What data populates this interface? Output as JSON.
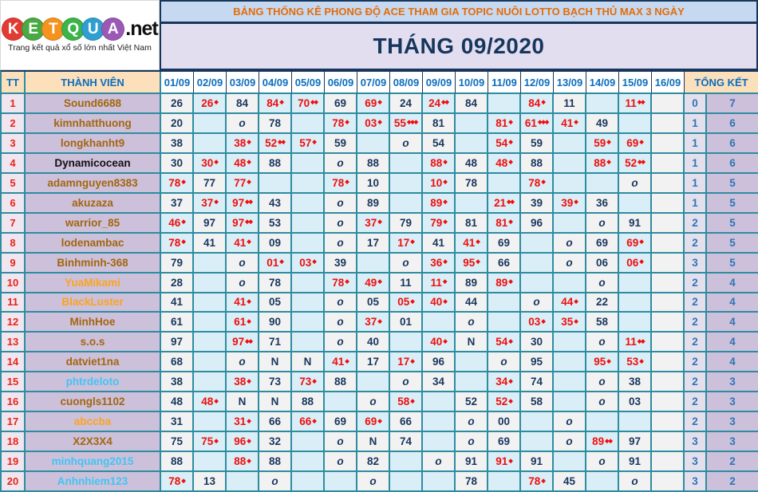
{
  "logo": {
    "letters": [
      {
        "ch": "K",
        "color": "#e23b33"
      },
      {
        "ch": "E",
        "color": "#49a942"
      },
      {
        "ch": "T",
        "color": "#f6921e"
      },
      {
        "ch": "Q",
        "color": "#3bb44a"
      },
      {
        "ch": "U",
        "color": "#2f9fd0"
      },
      {
        "ch": "A",
        "color": "#9b59b6"
      }
    ],
    "suffix": ".net",
    "tagline": "Trang kết quả xổ số lớn nhất Việt Nam"
  },
  "header": {
    "title": "BẢNG THỐNG KÊ PHONG ĐỘ ACE THAM GIA TOPIC NUÔI LOTTO BẠCH THỦ MAX 3 NGÀY",
    "month": "THÁNG 09/2020"
  },
  "columns": {
    "tt": "TT",
    "member": "THÀNH VIÊN",
    "dates": [
      "01/09",
      "02/09",
      "03/09",
      "04/09",
      "05/09",
      "06/09",
      "07/09",
      "08/09",
      "09/09",
      "10/09",
      "11/09",
      "12/09",
      "13/09",
      "14/09",
      "15/09",
      "16/09"
    ],
    "total": "TỔNG KẾT"
  },
  "colors": {
    "name_brown": "#a3660e",
    "name_black": "#111111",
    "name_orange": "#fca41d",
    "name_cyan": "#41c5f2",
    "value_navy": "#17375e",
    "value_red": "#f20d0d",
    "grid_teal": "#2e8ca0",
    "header_blue": "#0a6ebd",
    "title_orange": "#e36c0a",
    "band_lavender": "#e2deef",
    "band_blue": "#c6d9f1"
  },
  "rows": [
    {
      "tt": "1",
      "name": "Sound6688",
      "name_color": "brown",
      "cells": [
        "26",
        "26*",
        "84",
        "84*",
        "70**",
        "69",
        "69*",
        "24",
        "24**",
        "84",
        "",
        "84*",
        "11",
        "",
        "11**",
        ""
      ],
      "tk": [
        "0",
        "7"
      ]
    },
    {
      "tt": "2",
      "name": "kimnhatthuong",
      "name_color": "brown",
      "cells": [
        "20",
        "",
        "o",
        "78",
        "",
        "78*",
        "03*",
        "55***",
        "81",
        "",
        "81*",
        "61***",
        "41*",
        "49",
        "",
        ""
      ],
      "tk": [
        "1",
        "6"
      ]
    },
    {
      "tt": "3",
      "name": "longkhanht9",
      "name_color": "brown",
      "cells": [
        "38",
        "",
        "38*",
        "52**",
        "57*",
        "59",
        "",
        "o",
        "54",
        "",
        "54*",
        "59",
        "",
        "59*",
        "69*",
        ""
      ],
      "tk": [
        "1",
        "6"
      ]
    },
    {
      "tt": "4",
      "name": "Dynamicocean",
      "name_color": "black",
      "cells": [
        "30",
        "30*",
        "48*",
        "88",
        "",
        "o",
        "88",
        "",
        "88*",
        "48",
        "48*",
        "88",
        "",
        "88*",
        "52**",
        ""
      ],
      "tk": [
        "1",
        "6"
      ]
    },
    {
      "tt": "5",
      "name": "adamnguyen8383",
      "name_color": "brown",
      "cells": [
        "78*",
        "77",
        "77*",
        "",
        "",
        "78*",
        "10",
        "",
        "10*",
        "78",
        "",
        "78*",
        "",
        "",
        "o",
        ""
      ],
      "tk": [
        "1",
        "5"
      ]
    },
    {
      "tt": "6",
      "name": "akuzaza",
      "name_color": "brown",
      "cells": [
        "37",
        "37*",
        "97**",
        "43",
        "",
        "o",
        "89",
        "",
        "89*",
        "",
        "21**",
        "39",
        "39*",
        "36",
        "",
        ""
      ],
      "tk": [
        "1",
        "5"
      ]
    },
    {
      "tt": "7",
      "name": "warrior_85",
      "name_color": "brown",
      "cells": [
        "46*",
        "97",
        "97**",
        "53",
        "",
        "o",
        "37*",
        "79",
        "79*",
        "81",
        "81*",
        "96",
        "",
        "o",
        "91",
        ""
      ],
      "tk": [
        "2",
        "5"
      ]
    },
    {
      "tt": "8",
      "name": "lodenambac",
      "name_color": "brown",
      "cells": [
        "78*",
        "41",
        "41*",
        "09",
        "",
        "o",
        "17",
        "17*",
        "41",
        "41*",
        "69",
        "",
        "o",
        "69",
        "69*",
        ""
      ],
      "tk": [
        "2",
        "5"
      ]
    },
    {
      "tt": "9",
      "name": "Binhminh-368",
      "name_color": "brown",
      "cells": [
        "79",
        "",
        "o",
        "01*",
        "03*",
        "39",
        "",
        "o",
        "36*",
        "95*",
        "66",
        "",
        "o",
        "06",
        "06*",
        ""
      ],
      "tk": [
        "3",
        "5"
      ]
    },
    {
      "tt": "10",
      "name": "YuaMikami",
      "name_color": "orange",
      "cells": [
        "28",
        "",
        "o",
        "78",
        "",
        "78*",
        "49*",
        "11",
        "11*",
        "89",
        "89*",
        "",
        "",
        "o",
        "",
        ""
      ],
      "tk": [
        "2",
        "4"
      ]
    },
    {
      "tt": "11",
      "name": "BlackLuster",
      "name_color": "orange",
      "cells": [
        "41",
        "",
        "41*",
        "05",
        "",
        "o",
        "05",
        "05*",
        "40*",
        "44",
        "",
        "o",
        "44*",
        "22",
        "",
        ""
      ],
      "tk": [
        "2",
        "4"
      ]
    },
    {
      "tt": "12",
      "name": "MinhHoe",
      "name_color": "brown",
      "cells": [
        "61",
        "",
        "61*",
        "90",
        "",
        "o",
        "37*",
        "01",
        "",
        "o",
        "",
        "03*",
        "35*",
        "58",
        "",
        ""
      ],
      "tk": [
        "2",
        "4"
      ]
    },
    {
      "tt": "13",
      "name": "s.o.s",
      "name_color": "brown",
      "cells": [
        "97",
        "",
        "97**",
        "71",
        "",
        "o",
        "40",
        "",
        "40*",
        "N",
        "54*",
        "30",
        "",
        "o",
        "11**",
        ""
      ],
      "tk": [
        "2",
        "4"
      ]
    },
    {
      "tt": "14",
      "name": "datviet1na",
      "name_color": "brown",
      "cells": [
        "68",
        "",
        "o",
        "N",
        "N",
        "41*",
        "17",
        "17*",
        "96",
        "",
        "o",
        "95",
        "",
        "95*",
        "53*",
        ""
      ],
      "tk": [
        "2",
        "4"
      ]
    },
    {
      "tt": "15",
      "name": "phtrdeloto",
      "name_color": "cyan",
      "cells": [
        "38",
        "",
        "38*",
        "73",
        "73*",
        "88",
        "",
        "o",
        "34",
        "",
        "34*",
        "74",
        "",
        "o",
        "38",
        ""
      ],
      "tk": [
        "2",
        "3"
      ]
    },
    {
      "tt": "16",
      "name": "cuongls1102",
      "name_color": "brown",
      "cells": [
        "48",
        "48*",
        "N",
        "N",
        "88",
        "",
        "o",
        "58*",
        "",
        "52",
        "52*",
        "58",
        "",
        "o",
        "03",
        ""
      ],
      "tk": [
        "2",
        "3"
      ]
    },
    {
      "tt": "17",
      "name": "abccba",
      "name_color": "orange",
      "cells": [
        "31",
        "",
        "31*",
        "66",
        "66*",
        "69",
        "69*",
        "66",
        "",
        "o",
        "00",
        "",
        "o",
        "",
        "",
        ""
      ],
      "tk": [
        "2",
        "3"
      ]
    },
    {
      "tt": "18",
      "name": "X2X3X4",
      "name_color": "brown",
      "cells": [
        "75",
        "75*",
        "96*",
        "32",
        "",
        "o",
        "N",
        "74",
        "",
        "o",
        "69",
        "",
        "o",
        "89**",
        "97",
        ""
      ],
      "tk": [
        "3",
        "3"
      ]
    },
    {
      "tt": "19",
      "name": "minhquang2015",
      "name_color": "cyan",
      "cells": [
        "88",
        "",
        "88*",
        "88",
        "",
        "o",
        "82",
        "",
        "o",
        "91",
        "91*",
        "91",
        "",
        "o",
        "91",
        ""
      ],
      "tk": [
        "3",
        "2"
      ]
    },
    {
      "tt": "20",
      "name": "Anhnhiem123",
      "name_color": "cyan",
      "cells": [
        "78*",
        "13",
        "",
        "o",
        "",
        "",
        "o",
        "",
        "",
        "78",
        "",
        "78*",
        "45",
        "",
        "o",
        ""
      ],
      "tk": [
        "3",
        "2"
      ]
    }
  ]
}
